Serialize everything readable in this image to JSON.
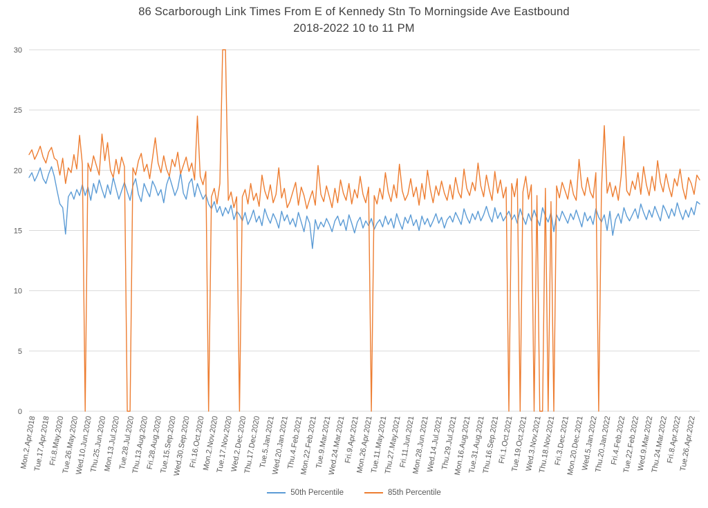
{
  "title": {
    "line1": "86 Scarborough Link Times From E of Kennedy Stn To Morningside Ave Eastbound",
    "line2": "2018-2022 10 to 11 PM"
  },
  "chart_data": {
    "type": "line",
    "title": "86 Scarborough Link Times From E of Kennedy Stn To Morningside Ave Eastbound 2018-2022 10 to 11 PM",
    "title_line1": "86 Scarborough Link Times From E of Kennedy Stn To Morningside Ave Eastbound",
    "title_line2": "2018-2022 10 to 11 PM",
    "xlabel": "",
    "ylabel": "",
    "ylim": [
      0,
      30
    ],
    "y_ticks": [
      0,
      5,
      10,
      15,
      20,
      25,
      30
    ],
    "grid": "horizontal",
    "gridline_color": "#d9d9d9",
    "axis_label_color": "#595959",
    "legend_position": "bottom",
    "label_every": 5,
    "x_labels": [
      "Mon.2.Apr.2018",
      "Tue.17.Apr.2018",
      "Fri.8.May.2020",
      "Tue.26.May.2020",
      "Wed.10.Jun.2020",
      "Thu.25.Jun.2020",
      "Mon.13.Jul.2020",
      "Tue.28.Jul.2020",
      "Thu.13.Aug.2020",
      "Fri.28.Aug.2020",
      "Tue.15.Sep.2020",
      "Wed.30.Sep.2020",
      "Fri.16.Oct.2020",
      "Mon.2.Nov.2020",
      "Tue.17.Nov.2020",
      "Wed.2.Dec.2020",
      "Thu.17.Dec.2020",
      "Tue.5.Jan.2021",
      "Wed.20.Jan.2021",
      "Thu.4.Feb.2021",
      "Mon.22.Feb.2021",
      "Tue.9.Mar.2021",
      "Wed.24.Mar.2021",
      "Fri.9.Apr.2021",
      "Mon.26.Apr.2021",
      "Tue.11.May.2021",
      "Thu.27.May.2021",
      "Fri.11.Jun.2021",
      "Mon.28.Jun.2021",
      "Wed.14.Jul.2021",
      "Thu.29.Jul.2021",
      "Mon.16.Aug.2021",
      "Tue.31.Aug.2021",
      "Thu.16.Sep.2021",
      "Fri.1.Oct.2021",
      "Tue.19.Oct.2021",
      "Wed.3.Nov.2021",
      "Thu.18.Nov.2021",
      "Fri.3.Dec.2021",
      "Mon.20.Dec.2021",
      "Wed.5.Jan.2022",
      "Thu.20.Jan.2022",
      "Fri.4.Feb.2022",
      "Tue.22.Feb.2022",
      "Wed.9.Mar.2022",
      "Thu.24.Mar.2022",
      "Fri.8.Apr.2022",
      "Tue.26.Apr.2022"
    ],
    "series": [
      {
        "name": "50th Percentile",
        "color": "#5b9bd5",
        "values": [
          19.4,
          19.8,
          19.1,
          19.6,
          20.2,
          19.3,
          18.9,
          19.7,
          20.3,
          19.5,
          18.3,
          17.2,
          16.9,
          14.7,
          17.8,
          18.2,
          17.6,
          18.4,
          17.9,
          18.8,
          17.9,
          18.6,
          17.5,
          18.9,
          18.1,
          19.2,
          18.4,
          17.7,
          18.8,
          18.0,
          19.4,
          18.5,
          17.6,
          18.3,
          19.0,
          18.2,
          17.5,
          18.7,
          19.3,
          18.0,
          17.4,
          18.9,
          18.3,
          17.8,
          19.1,
          18.6,
          17.9,
          18.4,
          17.3,
          18.8,
          19.5,
          18.7,
          17.9,
          18.5,
          19.8,
          18.1,
          17.6,
          18.9,
          19.3,
          17.8,
          18.9,
          18.2,
          17.6,
          18.0,
          17.2,
          16.8,
          17.4,
          16.5,
          17.0,
          16.2,
          16.9,
          16.4,
          17.1,
          15.9,
          16.6,
          16.3,
          15.8,
          16.5,
          15.5,
          16.0,
          16.7,
          15.7,
          16.2,
          15.4,
          16.8,
          16.1,
          15.6,
          16.4,
          15.9,
          15.2,
          16.6,
          15.8,
          16.3,
          15.5,
          16.0,
          15.3,
          16.5,
          15.7,
          14.9,
          16.2,
          15.6,
          13.5,
          15.9,
          15.1,
          15.7,
          15.3,
          16.0,
          15.5,
          14.9,
          15.8,
          16.2,
          15.4,
          15.9,
          15.0,
          16.3,
          15.6,
          14.8,
          15.7,
          16.1,
          15.2,
          15.8,
          15.4,
          16.0,
          15.1,
          15.6,
          15.9,
          15.3,
          16.2,
          15.5,
          16.0,
          15.2,
          16.4,
          15.7,
          15.1,
          16.1,
          15.6,
          16.3,
          15.4,
          15.9,
          15.0,
          16.2,
          15.5,
          16.0,
          15.3,
          15.8,
          16.4,
          15.6,
          16.1,
          15.2,
          15.9,
          16.2,
          15.7,
          16.5,
          16.0,
          15.5,
          16.8,
          16.1,
          15.6,
          16.4,
          15.9,
          16.6,
          15.8,
          16.3,
          17.0,
          16.2,
          15.7,
          16.9,
          16.0,
          16.5,
          15.8,
          16.2,
          16.6,
          15.9,
          16.3,
          15.6,
          16.8,
          16.1,
          15.5,
          16.4,
          15.8,
          16.7,
          16.0,
          15.4,
          16.9,
          16.2,
          15.7,
          16.5,
          14.9,
          16.3,
          15.8,
          16.6,
          16.1,
          15.6,
          16.4,
          15.9,
          16.7,
          16.0,
          15.3,
          16.5,
          15.8,
          16.2,
          15.5,
          16.8,
          16.1,
          15.7,
          16.3,
          15.0,
          16.6,
          14.6,
          15.9,
          16.4,
          15.6,
          16.9,
          16.2,
          15.8,
          16.3,
          16.8,
          16.0,
          17.2,
          16.5,
          15.9,
          16.7,
          16.1,
          17.0,
          16.4,
          15.8,
          17.1,
          16.6,
          16.0,
          16.8,
          16.2,
          17.3,
          16.5,
          15.9,
          16.7,
          16.1,
          16.9,
          16.3,
          17.4,
          17.2
        ]
      },
      {
        "name": "85th Percentile",
        "color": "#ed7d31",
        "values": [
          21.3,
          21.7,
          20.9,
          21.4,
          22.0,
          21.1,
          20.6,
          21.5,
          21.9,
          21.0,
          20.8,
          19.6,
          21.0,
          18.9,
          20.2,
          19.8,
          21.3,
          20.1,
          22.9,
          20.5,
          0,
          20.6,
          19.9,
          21.2,
          20.4,
          19.6,
          23.0,
          20.8,
          22.3,
          20.0,
          19.4,
          20.9,
          19.7,
          21.1,
          20.3,
          0,
          0,
          20.2,
          19.6,
          20.8,
          21.4,
          19.9,
          20.5,
          19.3,
          21.0,
          22.7,
          20.6,
          19.8,
          21.2,
          20.1,
          19.5,
          20.9,
          20.3,
          21.5,
          19.7,
          20.4,
          21.1,
          19.9,
          20.6,
          19.2,
          24.5,
          19.5,
          18.8,
          19.9,
          0,
          17.8,
          18.5,
          17.2,
          18.9,
          30,
          30,
          17.5,
          18.2,
          16.9,
          17.8,
          0,
          17.8,
          18.4,
          17.2,
          18.9,
          17.5,
          18.1,
          17.0,
          19.6,
          18.3,
          17.6,
          18.8,
          17.3,
          18.0,
          20.2,
          17.7,
          18.5,
          16.9,
          17.4,
          18.2,
          19.0,
          17.1,
          18.6,
          17.9,
          16.8,
          17.6,
          18.3,
          17.1,
          20.4,
          18.0,
          17.4,
          18.7,
          17.8,
          16.9,
          18.5,
          17.3,
          19.2,
          18.1,
          17.5,
          18.9,
          17.2,
          18.4,
          17.7,
          19.5,
          18.0,
          17.3,
          18.6,
          0,
          17.9,
          17.2,
          18.5,
          17.6,
          19.8,
          18.2,
          17.4,
          18.8,
          17.7,
          20.5,
          18.3,
          17.5,
          18.0,
          19.3,
          17.8,
          18.6,
          17.1,
          18.9,
          17.6,
          20.0,
          18.4,
          17.3,
          18.7,
          17.9,
          19.1,
          18.1,
          17.5,
          18.8,
          17.6,
          19.4,
          18.2,
          17.7,
          20.1,
          18.5,
          17.9,
          19.0,
          18.3,
          20.6,
          18.7,
          17.8,
          19.6,
          18.4,
          17.5,
          19.9,
          18.1,
          19.2,
          17.7,
          18.6,
          0,
          18.9,
          17.8,
          19.3,
          0,
          18.2,
          19.5,
          17.6,
          18.8,
          0,
          17.9,
          0,
          0,
          18.5,
          0,
          17.4,
          0,
          18.7,
          17.7,
          19.0,
          18.3,
          17.6,
          19.2,
          18.0,
          17.5,
          20.9,
          18.6,
          17.9,
          19.4,
          18.2,
          17.7,
          19.8,
          0,
          18.4,
          23.7,
          18.1,
          19.0,
          17.8,
          18.7,
          17.5,
          19.5,
          22.8,
          18.3,
          17.9,
          19.1,
          18.4,
          19.8,
          18.0,
          20.3,
          18.8,
          17.9,
          19.5,
          18.3,
          20.8,
          19.0,
          18.2,
          19.7,
          18.6,
          17.8,
          19.3,
          18.7,
          20.1,
          18.5,
          17.6,
          19.4,
          18.9,
          18.0,
          19.6,
          19.2
        ]
      }
    ]
  }
}
